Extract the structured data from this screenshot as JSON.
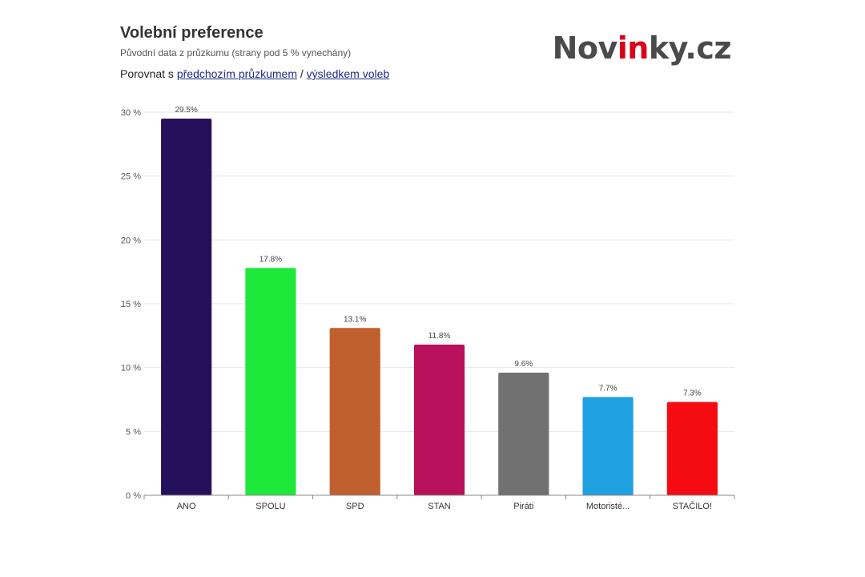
{
  "header": {
    "title": "Volební preference",
    "subtitle": "Původní data z průzkumu (strany pod 5 % vynechány)",
    "compare_prefix": "Porovnat s ",
    "compare_link_previous": "předchozím průzkumem",
    "compare_separator": " / ",
    "compare_link_election": "výsledkem voleb"
  },
  "logo": {
    "part1": "Nov",
    "part2": "in",
    "part3": "ky.cz",
    "color": "#4a4a4a",
    "accent_color": "#d9001a"
  },
  "chart_data": {
    "type": "bar",
    "title": "Volební preference",
    "subtitle": "Původní data z průzkumu (strany pod 5 % vynechány)",
    "xlabel": "",
    "ylabel": "",
    "ylim": [
      0,
      30
    ],
    "yticks": [
      0,
      5,
      10,
      15,
      20,
      25,
      30
    ],
    "ytick_labels": [
      "0 %",
      "5 %",
      "10 %",
      "15 %",
      "20 %",
      "25 %",
      "30 %"
    ],
    "grid": true,
    "categories": [
      "ANO",
      "SPOLU",
      "SPD",
      "STAN",
      "Piráti",
      "Motoristé...",
      "STAČILO!"
    ],
    "values": [
      29.5,
      17.8,
      13.1,
      11.8,
      9.6,
      7.7,
      7.3
    ],
    "value_labels": [
      "29.5%",
      "17.8%",
      "13.1%",
      "11.8%",
      "9.6%",
      "7.7%",
      "7.3%"
    ],
    "colors": [
      "#26105c",
      "#1ee83a",
      "#c0602e",
      "#b8105a",
      "#717171",
      "#1fa0e0",
      "#f50c12"
    ]
  }
}
